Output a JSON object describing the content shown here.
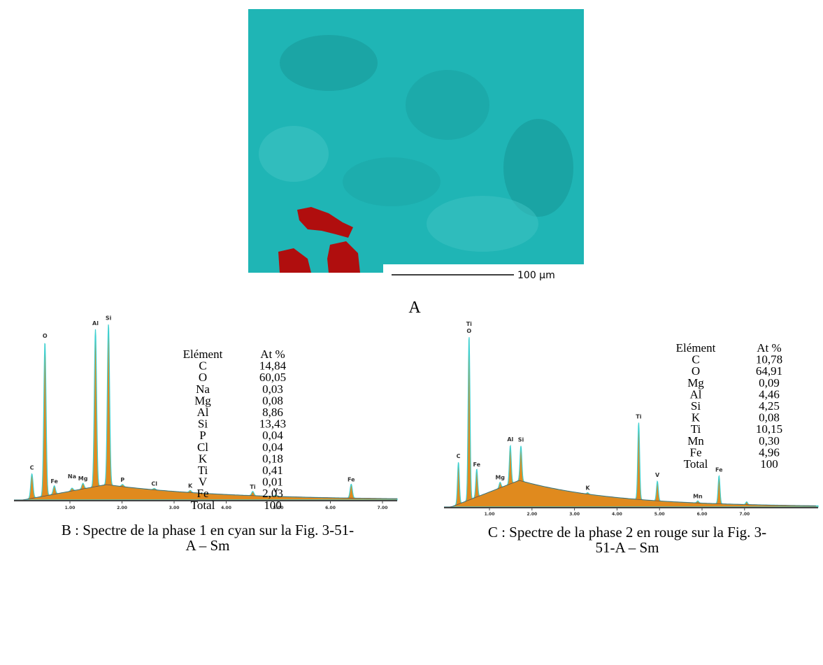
{
  "panel_a": {
    "scale_bar": "100 µm",
    "label": "A"
  },
  "panel_b": {
    "peaks": [
      "C",
      "O",
      "Fe",
      "Na",
      "Mg",
      "Al",
      "Si",
      "P",
      "Cl",
      "K",
      "Ti",
      "V",
      "Fe"
    ],
    "axis_ticks": [
      "1.00",
      "2.00",
      "3.00",
      "4.00",
      "5.00",
      "6.00",
      "7.00"
    ],
    "table": {
      "header": [
        "Elément",
        "At %"
      ],
      "rows": [
        [
          "C",
          "14,84"
        ],
        [
          "O",
          "60,05"
        ],
        [
          "Na",
          "0,03"
        ],
        [
          "Mg",
          "0,08"
        ],
        [
          "Al",
          "8,86"
        ],
        [
          "Si",
          "13,43"
        ],
        [
          "P",
          "0,04"
        ],
        [
          "Cl",
          "0,04"
        ],
        [
          "K",
          "0,18"
        ],
        [
          "Ti",
          "0,41"
        ],
        [
          "V",
          "0,01"
        ],
        [
          "Fe",
          "2,03"
        ],
        [
          "Total",
          "100"
        ]
      ]
    },
    "caption": [
      "B : Spectre de la phase 1 en cyan sur la Fig. 3-51-",
      "A – Sm"
    ]
  },
  "panel_c": {
    "peaks": [
      "C",
      "Ti",
      "O",
      "Fe",
      "Mg",
      "Al",
      "Si",
      "K",
      "Ti",
      "V",
      "Mn",
      "Fe"
    ],
    "axis_ticks": [
      "1.00",
      "2.00",
      "3.00",
      "4.00",
      "5.00",
      "6.00",
      "7.00"
    ],
    "table": {
      "header": [
        "Elément",
        "At %"
      ],
      "rows": [
        [
          "C",
          "10,78"
        ],
        [
          "O",
          "64,91"
        ],
        [
          "Mg",
          "0,09"
        ],
        [
          "Al",
          "4,46"
        ],
        [
          "Si",
          "4,25"
        ],
        [
          "K",
          "0,08"
        ],
        [
          "Ti",
          "10,15"
        ],
        [
          "Mn",
          "0,30"
        ],
        [
          "Fe",
          "4,96"
        ],
        [
          "Total",
          "100"
        ]
      ]
    },
    "caption": [
      "C : Spectre de la phase 2 en rouge sur la Fig. 3-",
      "51-A – Sm"
    ]
  }
}
